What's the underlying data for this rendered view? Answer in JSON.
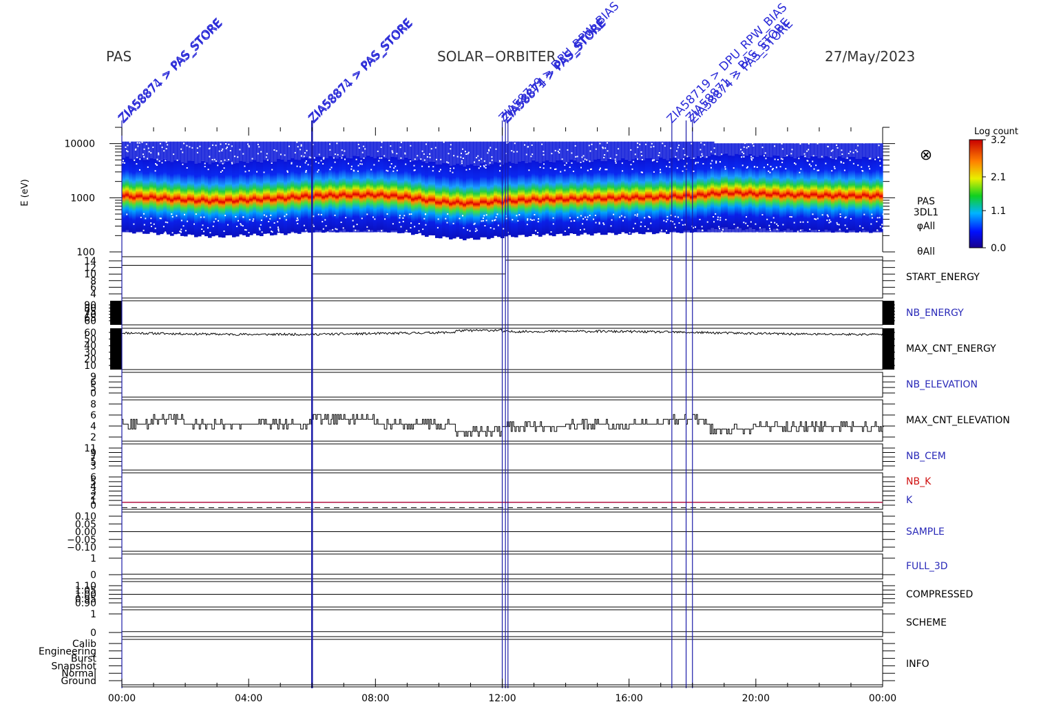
{
  "header": {
    "instrument": "PAS",
    "mission": "SOLAR−ORBITER",
    "date": "27/May/2023"
  },
  "colors": {
    "event_line": "#1a1aa8",
    "event_text": "#2a2ad8",
    "panel_line": "#000000",
    "label_blue": "#2828b8",
    "label_red": "#d01010",
    "k_line": "#b01040"
  },
  "chart_data": {
    "type": "heatmap",
    "title": "",
    "time_axis": {
      "label": "",
      "ticks": [
        "00:00",
        "04:00",
        "08:00",
        "12:00",
        "16:00",
        "20:00",
        "00:00"
      ],
      "range_hours": [
        0,
        24
      ]
    },
    "events": {
      "labels": [
        {
          "time_h": 0.0,
          "text": "ZIA58871 > PAS_STORE"
        },
        {
          "time_h": 0.0,
          "text": "ZIA58874 > PAS_STORE"
        },
        {
          "time_h": 6.0,
          "text": "ZIA58871 > PAS_STORE"
        },
        {
          "time_h": 6.0,
          "text": "ZIA58874 > PAS_STORE"
        },
        {
          "time_h": 12.0,
          "text": "ZIA58719 > DPU_RPW_BIAS"
        },
        {
          "time_h": 12.1,
          "text": "ZIA58871 > PAS_STORE"
        },
        {
          "time_h": 12.1,
          "text": "ZIA58874 > PAS_STORE"
        },
        {
          "time_h": 17.3,
          "text": "ZIA58719 > DPU_RPW_BIAS"
        },
        {
          "time_h": 17.9,
          "text": "ZIA58871 > PAS_STORE"
        },
        {
          "time_h": 18.0,
          "text": "ZIA58874 > PAS_STORE"
        }
      ],
      "lines_h": [
        0.0,
        6.0,
        12.0,
        12.1,
        12.18,
        17.35,
        17.8,
        18.0
      ]
    },
    "spectrogram": {
      "ylabel": "E (eV)",
      "y_ticks": [
        "10000",
        "1000",
        "100"
      ],
      "ylim": [
        100,
        20000
      ],
      "log_scale": true,
      "side_labels": [
        "PAS",
        "3DL1",
        "φAll",
        "θAll"
      ],
      "symbol": "⊗",
      "colorbar": {
        "label": "Log count",
        "ticks": [
          "3.2",
          "2.1",
          "1.1",
          "0.0"
        ],
        "range": [
          0.0,
          3.2
        ]
      },
      "peak_energy_ev": [
        [
          0,
          1000
        ],
        [
          2,
          850
        ],
        [
          3,
          800
        ],
        [
          4,
          850
        ],
        [
          5,
          900
        ],
        [
          6,
          1000
        ],
        [
          8,
          1050
        ],
        [
          9,
          950
        ],
        [
          10,
          780
        ],
        [
          11,
          720
        ],
        [
          12,
          800
        ],
        [
          13,
          850
        ],
        [
          15,
          900
        ],
        [
          17,
          950
        ],
        [
          18,
          1000
        ],
        [
          19,
          1150
        ],
        [
          21,
          1050
        ],
        [
          23,
          1000
        ],
        [
          24,
          1000
        ]
      ]
    },
    "panels": [
      {
        "name": "START_ENERGY",
        "color": "black",
        "ticks": [
          "14",
          "12",
          "10",
          "8",
          "6",
          "4"
        ],
        "ylim": [
          3,
          15
        ],
        "steps": [
          [
            0,
            12.5
          ],
          [
            6,
            10
          ],
          [
            12.1,
            14
          ],
          [
            24,
            14
          ]
        ]
      },
      {
        "name": "NB_ENERGY",
        "color": "blue",
        "ticks": [
          "90",
          "80",
          "75",
          "70",
          "65",
          "60"
        ],
        "ylim": [
          58,
          92
        ]
      },
      {
        "name": "MAX_CNT_ENERGY",
        "color": "black",
        "ticks": [
          "60",
          "50",
          "40",
          "30",
          "20",
          "10"
        ],
        "ylim": [
          8,
          62
        ],
        "series_baseline": 56
      },
      {
        "name": "NB_ELEVATION",
        "color": "blue",
        "ticks": [
          "9",
          "6",
          "5",
          "0"
        ],
        "ylim": [
          -1,
          10
        ]
      },
      {
        "name": "MAX_CNT_ELEVATION",
        "color": "black",
        "ticks": [
          "8",
          "6",
          "4",
          "2"
        ],
        "ylim": [
          0.5,
          9
        ],
        "levels": [
          [
            0,
            4
          ],
          [
            1.0,
            5
          ],
          [
            2.0,
            4
          ],
          [
            6,
            5
          ],
          [
            8,
            4
          ],
          [
            10.5,
            2.5
          ],
          [
            12,
            3.5
          ],
          [
            14,
            4
          ],
          [
            17,
            5
          ],
          [
            18.5,
            3
          ],
          [
            20,
            3.5
          ],
          [
            24,
            3.5
          ]
        ]
      },
      {
        "name": "NB_CEM",
        "color": "blue",
        "ticks": [
          "11",
          "9",
          "7",
          "5",
          "3"
        ],
        "ylim": [
          2,
          12
        ]
      },
      {
        "name": "NB_K",
        "color": "red",
        "ticks": [
          "6",
          "5",
          "4",
          "3",
          "2",
          "1",
          "0"
        ],
        "ylim": [
          -0.3,
          6.5
        ],
        "value": 1
      },
      {
        "name": "K",
        "color": "blue"
      },
      {
        "name": "SAMPLE",
        "color": "blue",
        "ticks": [
          "0.10",
          "0.05",
          "0.00",
          "−0.05",
          "−0.10"
        ],
        "ylim": [
          -0.12,
          0.12
        ],
        "value": 0.0
      },
      {
        "name": "FULL_3D",
        "color": "blue",
        "ticks": [
          "1",
          "0"
        ],
        "ylim": [
          -0.3,
          1.3
        ],
        "value": 0
      },
      {
        "name": "COMPRESSED",
        "color": "black",
        "ticks": [
          "1.10",
          "1.05",
          "1.00",
          "0.95",
          "0.90"
        ],
        "ylim": [
          0.88,
          1.12
        ],
        "value": 1.0
      },
      {
        "name": "SCHEME",
        "color": "black",
        "ticks": [
          "1",
          "0"
        ],
        "ylim": [
          -0.3,
          1.3
        ],
        "value": 0
      },
      {
        "name": "INFO",
        "color": "black",
        "ticks": [
          "Calib",
          "Engineering",
          "Burst",
          "Snapshot",
          "Normal",
          "Ground"
        ]
      }
    ]
  }
}
